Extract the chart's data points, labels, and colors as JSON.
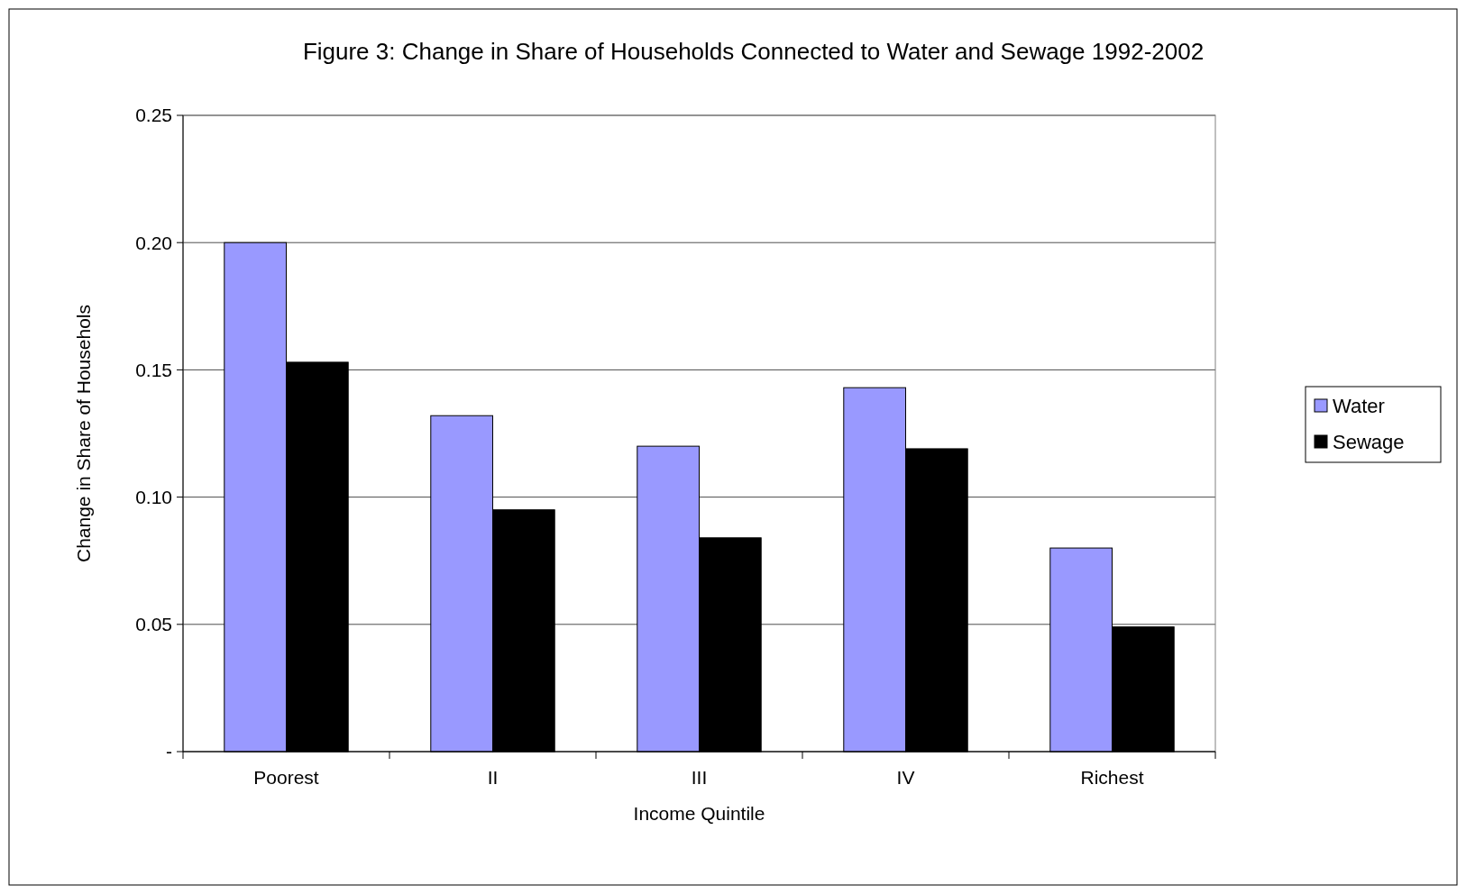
{
  "chart_data": {
    "type": "bar",
    "title": "Figure 3: Change in Share of Households Connected to Water and Sewage 1992-2002",
    "xlabel": "Income Quintile",
    "ylabel": "Change in Share of Househols",
    "categories": [
      "Poorest",
      "II",
      "III",
      "IV",
      "Richest"
    ],
    "series": [
      {
        "name": "Water",
        "color": "#9999ff",
        "values": [
          0.2,
          0.132,
          0.12,
          0.143,
          0.08
        ]
      },
      {
        "name": "Sewage",
        "color": "#000000",
        "values": [
          0.153,
          0.095,
          0.084,
          0.119,
          0.049
        ]
      }
    ],
    "ylim": [
      0,
      0.25
    ],
    "yticks": [
      {
        "value": 0,
        "label": "-"
      },
      {
        "value": 0.05,
        "label": "0.05"
      },
      {
        "value": 0.1,
        "label": "0.10"
      },
      {
        "value": 0.15,
        "label": "0.15"
      },
      {
        "value": 0.2,
        "label": "0.20"
      },
      {
        "value": 0.25,
        "label": "0.25"
      }
    ],
    "grid": "y",
    "legend": "right"
  }
}
